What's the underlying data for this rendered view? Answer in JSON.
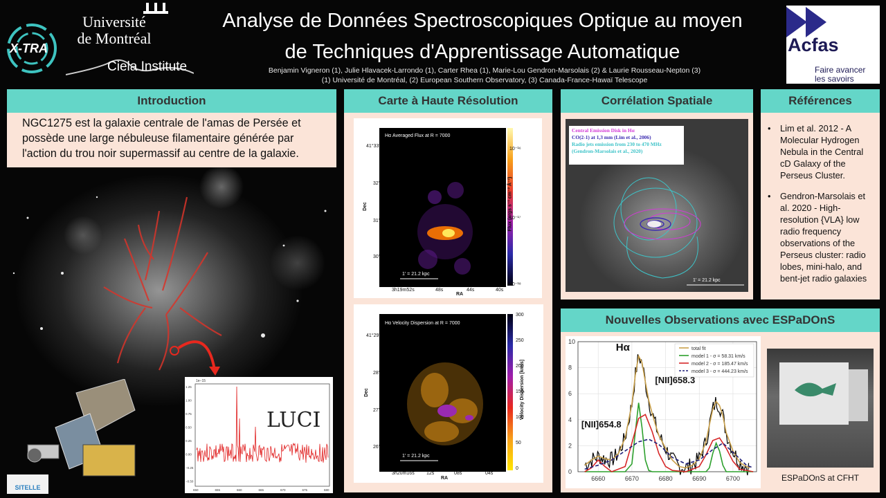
{
  "header": {
    "title_line1": "Analyse de Données Spectroscopiques Optique au moyen",
    "title_line2": "de Techniques d'Apprentissage Automatique",
    "authors": "Benjamin Vigneron (1), Julie Hlavacek-Larrondo (1), Carter Rhea (1), Marie-Lou Gendron-Marsolais (2) & Laurie Rousseau-Nepton (3)",
    "affiliations": "(1) Université de Montréal, (2) European Southern Observatory, (3) Canada-France-Hawaï Telescope",
    "logos": {
      "xtra": "X-TRA",
      "udem_line1": "Université",
      "udem_line2": "de Montréal",
      "ciela": "Ciela Institute",
      "acfas": "Acfas",
      "acfas_tag1": "Faire avancer",
      "acfas_tag2": "les savoirs",
      "sitelle": "SITELLE"
    }
  },
  "colors": {
    "section_header": "#64d6c8",
    "panel": "#fbe4d8",
    "accent_red": "#e8281e"
  },
  "introduction": {
    "heading": "Introduction",
    "text": "NGC1275 est la galaxie centrale de l'amas de Persée et possède une large nébuleuse filamentaire générée par l'action du trou noir supermassif au centre de la galaxie."
  },
  "carte": {
    "heading": "Carte à Haute Résolution",
    "flux_map": {
      "title": "Hα Averaged Flux at R = 7000",
      "ylabel": "Dec",
      "xlabel": "RA",
      "colorbar_label": "Flux (ergs s⁻¹ cm⁻² Å⁻¹)",
      "colorbar_ticks": [
        "10⁻¹⁶",
        "10⁻¹⁷",
        "10⁻¹⁸"
      ],
      "y_ticks": [
        "41°33'",
        "32'",
        "31'",
        "30'"
      ],
      "x_ticks": [
        "3h19m52s",
        "48s",
        "44s",
        "40s"
      ],
      "scale": "1' = 21.2 kpc"
    },
    "velocity_map": {
      "title": "Hα Velocity Dispersion at R = 7000",
      "ylabel": "Dec",
      "xlabel": "RA",
      "colorbar_label": "Velocity Dispersion [km/s]",
      "colorbar_ticks": [
        "300",
        "250",
        "200",
        "150",
        "100",
        "50",
        "0"
      ],
      "y_ticks": [
        "41°29'",
        "28'",
        "27'",
        "26'"
      ],
      "x_ticks": [
        "3h20m16s",
        "12s",
        "08s",
        "04s"
      ],
      "scale": "1' = 21.2 kpc"
    }
  },
  "correlation": {
    "heading": "Corrélation Spatiale",
    "legend": [
      "Central Emission Disk in Hα",
      "CO(2-1) at 1,3 mm (Lim et al., 2006)",
      "Radio jets emission from 230 to 470 MHz",
      "(Gendron-Marsolais et al., 2020)"
    ],
    "scale": "1' = 21.2 kpc"
  },
  "references": {
    "heading": "Références",
    "items": [
      "Lim et al. 2012 - A Molecular Hydrogen Nebula in the Central cD Galaxy of the Perseus Cluster.",
      "Gendron-Marsolais et al. 2020 - High-resolution {VLA} low radio frequency observations of the Perseus cluster: radio lobes, mini-halo, and bent-jet radio galaxies"
    ]
  },
  "observations": {
    "heading": "Nouvelles Observations avec ESPaDOnS",
    "photo_caption": "ESPaDOnS at CFHT"
  },
  "lucy_spectrum": {
    "exponent": "1e−15",
    "y_ticks": [
      "1.25",
      "1.00",
      "0.75",
      "0.50",
      "0.25",
      "0.00",
      "−0.25",
      "−0.50"
    ],
    "x_ticks": [
      "650",
      "655",
      "660",
      "665",
      "670",
      "675",
      "680"
    ],
    "logo_text": "LUCI"
  },
  "chart_data": {
    "type": "line",
    "title": "",
    "xlabel": "",
    "ylabel": "",
    "xlim": [
      6654,
      6707
    ],
    "ylim": [
      0,
      10
    ],
    "x_ticks": [
      6660,
      6670,
      6680,
      6690,
      6700
    ],
    "y_ticks": [
      0,
      2,
      4,
      6,
      8,
      10
    ],
    "grid": true,
    "legend_position": "top-right",
    "annotations": [
      "Hα",
      "[NII]658.3",
      "[NII]654.8"
    ],
    "series": [
      {
        "name": "total fit",
        "color": "#c9a04a",
        "x": [
          6656,
          6658,
          6660,
          6662,
          6664,
          6666,
          6668,
          6670,
          6671,
          6672,
          6673,
          6674,
          6675,
          6676,
          6677,
          6678,
          6680,
          6682,
          6684,
          6686,
          6688,
          6690,
          6692,
          6693,
          6694,
          6695,
          6696,
          6697,
          6698,
          6700,
          6702,
          6704,
          6705
        ],
        "y": [
          0.5,
          0.9,
          1.2,
          1.0,
          0.9,
          1.4,
          2.6,
          5.2,
          7.4,
          8.9,
          8.4,
          6.9,
          5.5,
          4.5,
          3.6,
          2.8,
          1.8,
          0.9,
          0.4,
          0.3,
          0.5,
          1.0,
          2.3,
          3.6,
          4.8,
          5.4,
          5.1,
          4.3,
          3.0,
          1.6,
          0.7,
          0.4,
          0.3
        ]
      },
      {
        "name": "model 1 - σ = 58.31 km/s",
        "color": "#2ca02c",
        "x": [
          6656,
          6668,
          6670,
          6671,
          6672,
          6673,
          6674,
          6675,
          6676,
          6678,
          6690,
          6692,
          6693,
          6694,
          6695,
          6696,
          6697,
          6698,
          6706
        ],
        "y": [
          0,
          0,
          0.6,
          3.0,
          5.3,
          3.4,
          0.9,
          0.1,
          0,
          0,
          0,
          0,
          0.3,
          1.4,
          2.2,
          1.6,
          0.5,
          0,
          0
        ]
      },
      {
        "name": "model 2 - σ = 185.47 km/s",
        "color": "#d62728",
        "x": [
          6656,
          6658,
          6660,
          6662,
          6664,
          6668,
          6670,
          6672,
          6674,
          6676,
          6678,
          6680,
          6682,
          6686,
          6690,
          6692,
          6694,
          6696,
          6698,
          6700,
          6702,
          6706
        ],
        "y": [
          0,
          0.3,
          0.9,
          0.4,
          0,
          0.4,
          2.2,
          4.1,
          4.4,
          3.1,
          1.4,
          0.4,
          0.1,
          0,
          0.4,
          1.3,
          2.4,
          2.6,
          1.8,
          0.8,
          0.2,
          0
        ]
      },
      {
        "name": "model 3 - σ = 444.23 km/s",
        "color": "#1f1f7a",
        "x": [
          6656,
          6660,
          6664,
          6668,
          6672,
          6675,
          6678,
          6682,
          6686,
          6690,
          6694,
          6697,
          6700,
          6704,
          6706
        ],
        "y": [
          0.2,
          0.5,
          0.9,
          1.6,
          2.3,
          2.5,
          2.1,
          1.1,
          0.6,
          0.9,
          1.7,
          2.2,
          1.5,
          0.5,
          0.3
        ]
      }
    ]
  }
}
